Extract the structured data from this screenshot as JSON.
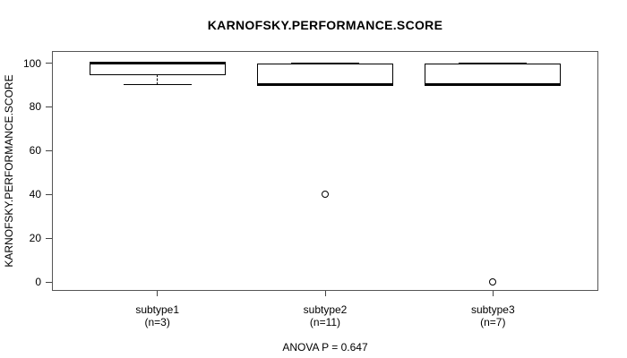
{
  "chart_data": {
    "type": "boxplot",
    "title": "KARNOFSKY.PERFORMANCE.SCORE",
    "ylabel": "KARNOFSKY.PERFORMANCE.SCORE",
    "xlabel": "",
    "annotation": "ANOVA P = 0.647",
    "ylim": [
      0,
      100
    ],
    "yticks": [
      0,
      20,
      40,
      60,
      80,
      100
    ],
    "grid": false,
    "legend": null,
    "groups": [
      {
        "label": "subtype1",
        "sublabel": "(n=3)",
        "min": 90,
        "q1": 95,
        "median": 100,
        "q3": 100,
        "max": 100,
        "outliers": []
      },
      {
        "label": "subtype2",
        "sublabel": "(n=11)",
        "min": 90,
        "q1": 90,
        "median": 90,
        "q3": 100,
        "max": 100,
        "outliers": [
          40
        ]
      },
      {
        "label": "subtype3",
        "sublabel": "(n=7)",
        "min": 90,
        "q1": 90,
        "median": 90,
        "q3": 100,
        "max": 100,
        "outliers": [
          0
        ]
      }
    ],
    "colors": {
      "line": "#000000",
      "frame": "#555555",
      "background": "#ffffff",
      "box_fill": "#ffffff"
    }
  }
}
